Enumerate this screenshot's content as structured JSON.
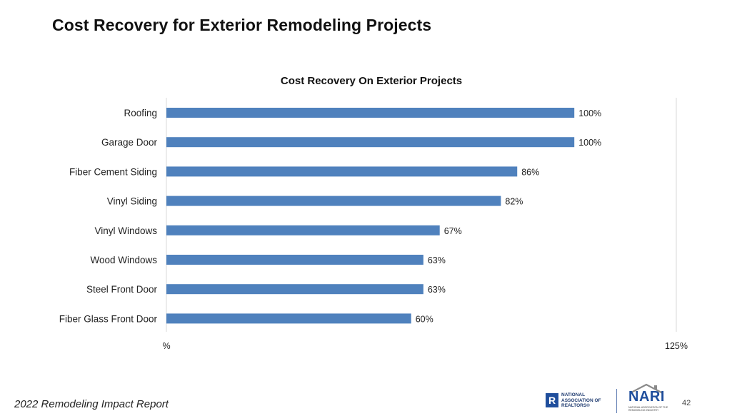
{
  "page": {
    "title": "Cost Recovery for Exterior Remodeling Projects",
    "footer": "2022 Remodeling Impact Report",
    "page_number": "42"
  },
  "logos": {
    "realtors": {
      "icon": "realtor-r-logo",
      "text": "NATIONAL ASSOCIATION OF REALTORS®"
    },
    "nari": {
      "icon": "nari-house-logo",
      "word": "NARI",
      "subtitle": "NATIONAL ASSOCIATION OF THE REMODELING INDUSTRY"
    }
  },
  "chart_data": {
    "type": "bar",
    "orientation": "horizontal",
    "title": "Cost Recovery On Exterior Projects",
    "categories": [
      "Roofing",
      "Garage Door",
      "Fiber Cement Siding",
      "Vinyl Siding",
      "Vinyl Windows",
      "Wood Windows",
      "Steel Front Door",
      "Fiber Glass Front Door"
    ],
    "values": [
      100,
      100,
      86,
      82,
      67,
      63,
      63,
      60
    ],
    "data_labels": [
      "100%",
      "100%",
      "86%",
      "82%",
      "67%",
      "63%",
      "63%",
      "60%"
    ],
    "xlim": [
      0,
      125
    ],
    "x_tick_labels": [
      "%",
      "125%"
    ],
    "bar_color": "#4f81bd",
    "grid": false,
    "legend": "none"
  }
}
